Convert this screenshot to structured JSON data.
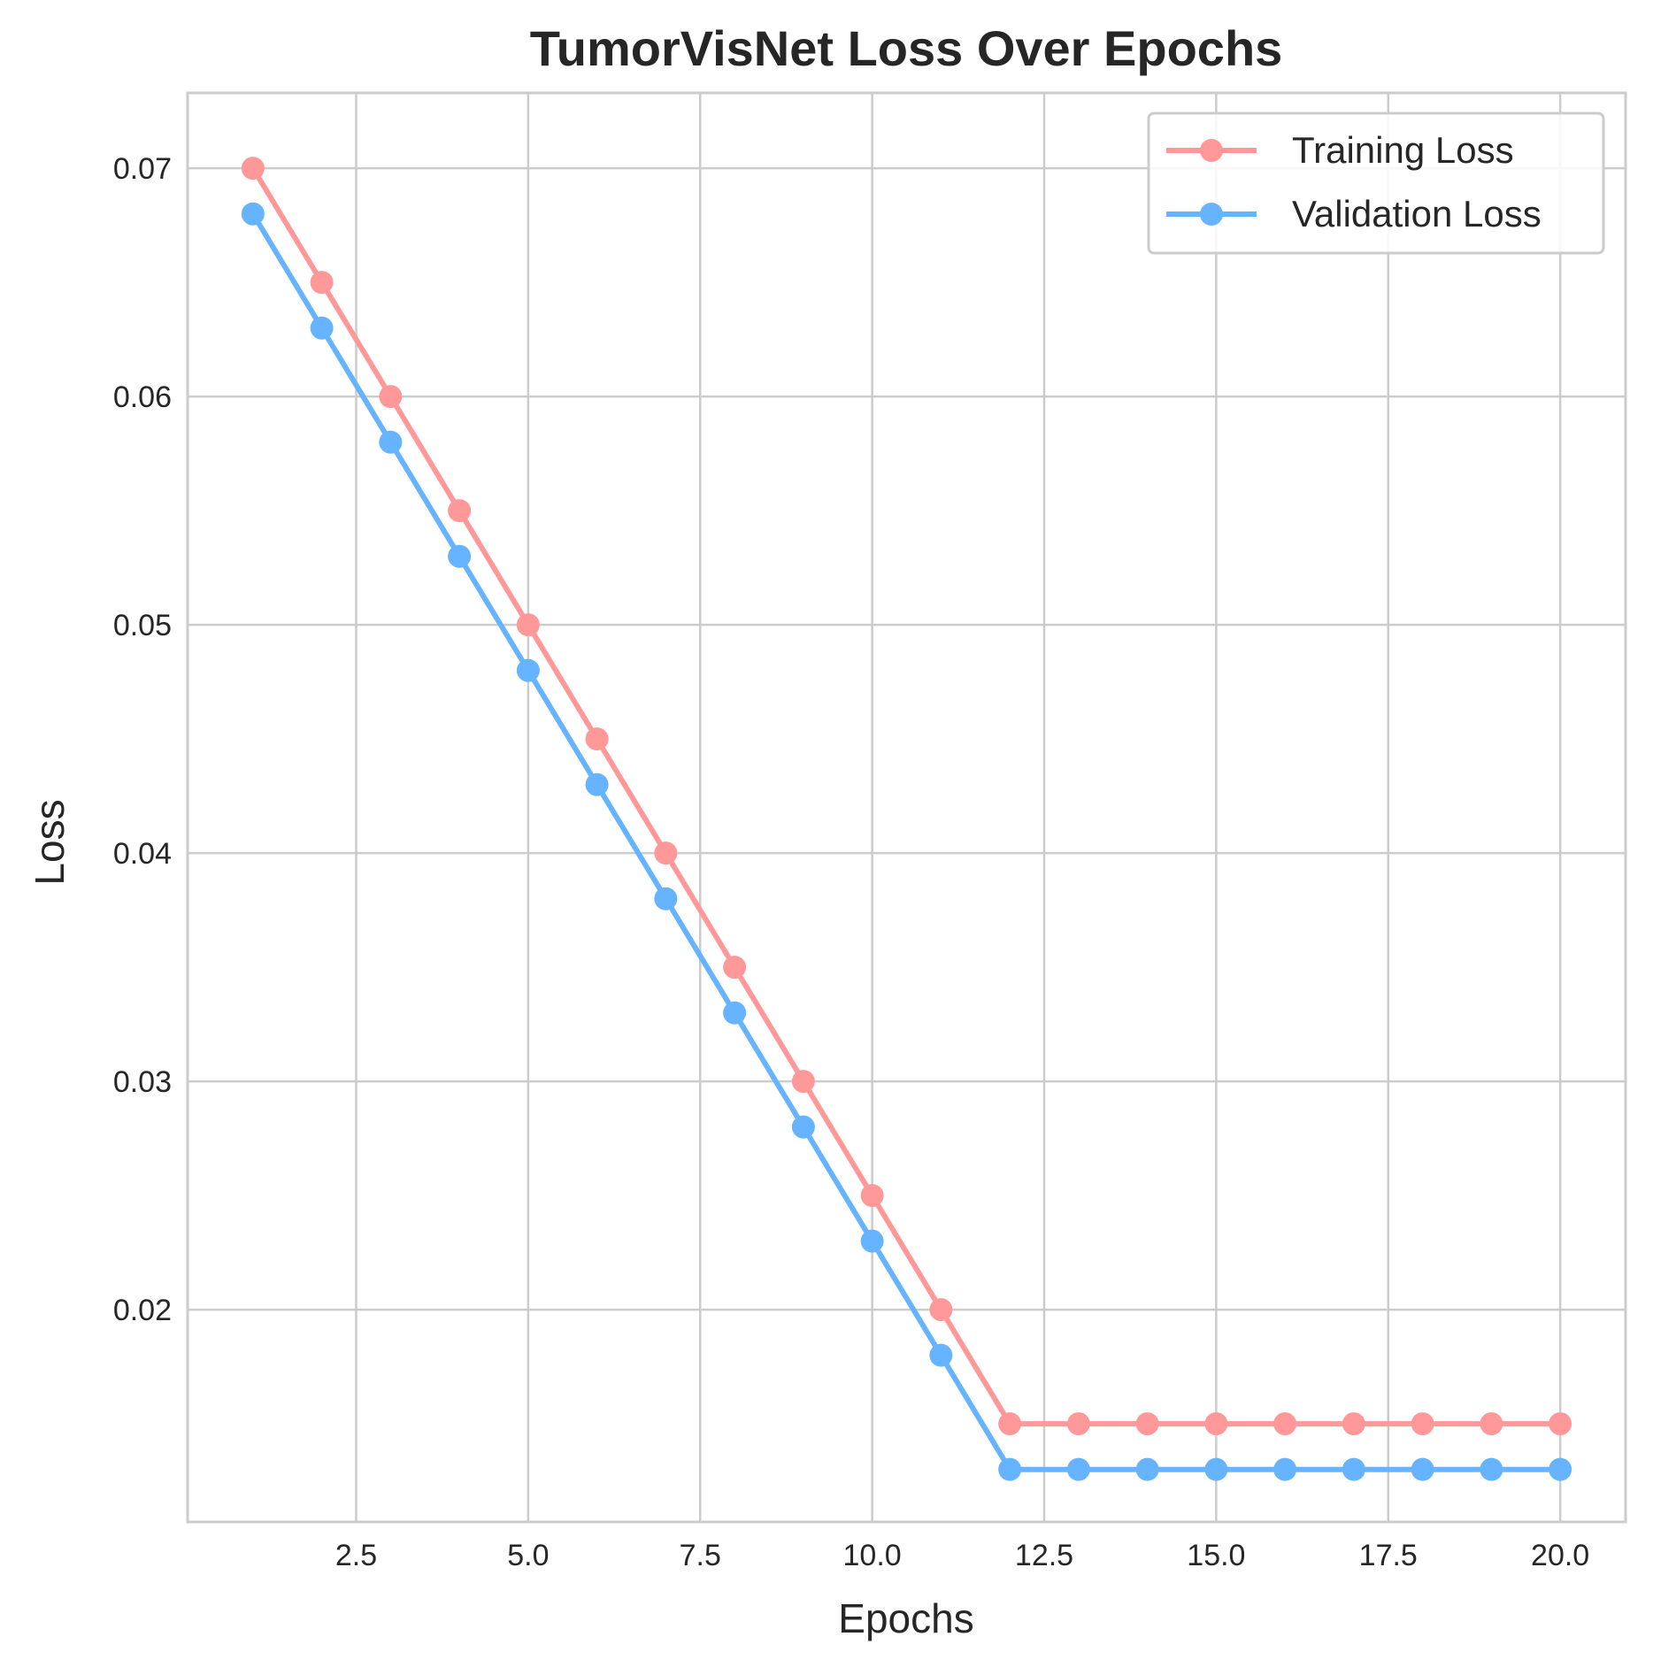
{
  "chart_data": {
    "type": "line",
    "title": "TumorVisNet Loss Over Epochs",
    "xlabel": "Epochs",
    "ylabel": "Loss",
    "x": [
      1,
      2,
      3,
      4,
      5,
      6,
      7,
      8,
      9,
      10,
      11,
      12,
      13,
      14,
      15,
      16,
      17,
      18,
      19,
      20
    ],
    "xlim": [
      0.05,
      20.95
    ],
    "ylim": [
      0.0107,
      0.0733
    ],
    "xticks": [
      2.5,
      5.0,
      7.5,
      10.0,
      12.5,
      15.0,
      17.5,
      20.0
    ],
    "xtick_labels": [
      "2.5",
      "5.0",
      "7.5",
      "10.0",
      "12.5",
      "15.0",
      "17.5",
      "20.0"
    ],
    "yticks": [
      0.02,
      0.03,
      0.04,
      0.05,
      0.06,
      0.07
    ],
    "ytick_labels": [
      "0.02",
      "0.03",
      "0.04",
      "0.05",
      "0.06",
      "0.07"
    ],
    "grid": true,
    "legend_position": "top-right",
    "series": [
      {
        "name": "Training Loss",
        "color": "#ff9999",
        "marker": "circle",
        "values": [
          0.07,
          0.065,
          0.06,
          0.055,
          0.05,
          0.045,
          0.04,
          0.035,
          0.03,
          0.025,
          0.02,
          0.015,
          0.015,
          0.015,
          0.015,
          0.015,
          0.015,
          0.015,
          0.015,
          0.015
        ]
      },
      {
        "name": "Validation Loss",
        "color": "#66b3ff",
        "marker": "circle",
        "values": [
          0.068,
          0.063,
          0.058,
          0.053,
          0.048,
          0.043,
          0.038,
          0.033,
          0.028,
          0.023,
          0.018,
          0.013,
          0.013,
          0.013,
          0.013,
          0.013,
          0.013,
          0.013,
          0.013,
          0.013
        ]
      }
    ]
  }
}
